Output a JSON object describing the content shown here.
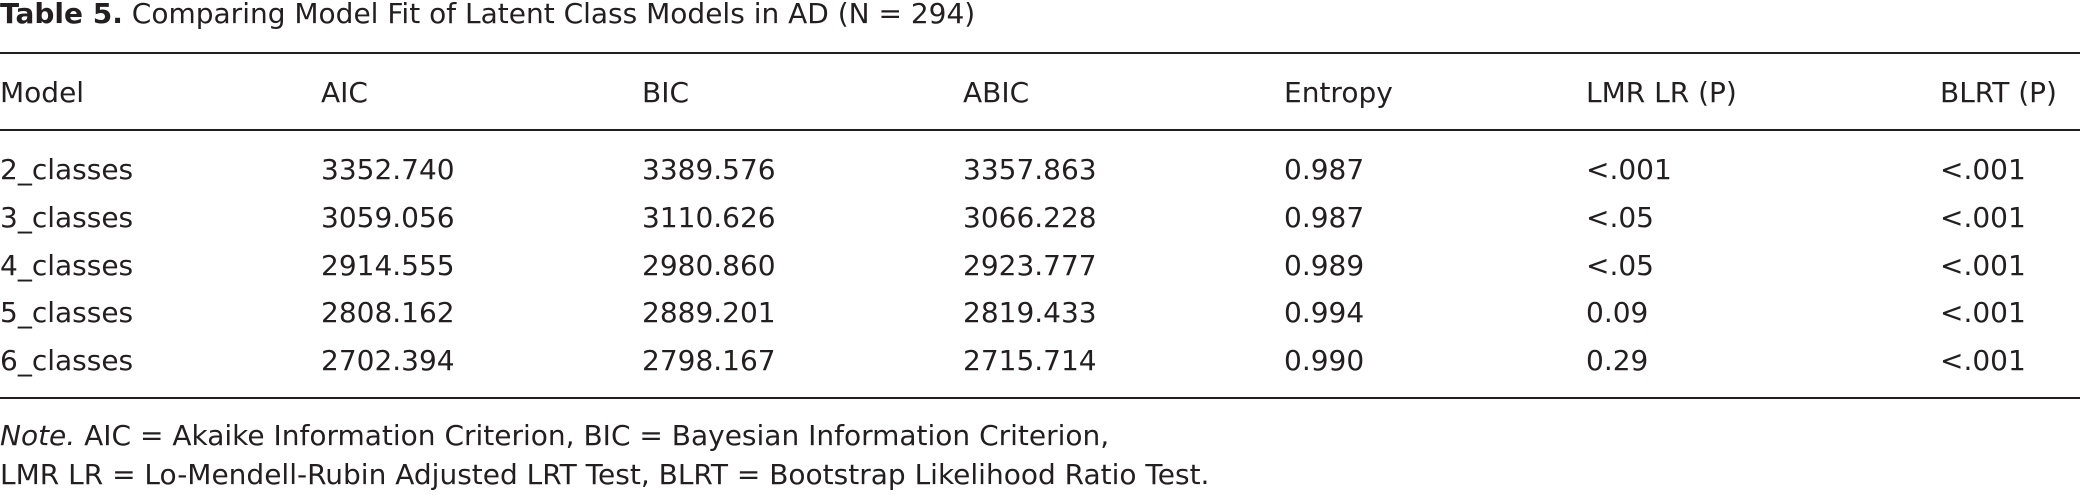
{
  "title": {
    "label": "Table 5.",
    "text": "Comparing Model Fit of Latent Class Models in AD (N = 294)"
  },
  "table": {
    "header": [
      "Model",
      "AIC",
      "BIC",
      "ABIC",
      "Entropy",
      "LMR LR (P)",
      "BLRT (P)"
    ],
    "rows": [
      [
        "2_classes",
        "3352.740",
        "3389.576",
        "3357.863",
        "0.987",
        "<.001",
        "<.001"
      ],
      [
        "3_classes",
        "3059.056",
        "3110.626",
        "3066.228",
        "0.987",
        "<.05",
        "<.001"
      ],
      [
        "4_classes",
        "2914.555",
        "2980.860",
        "2923.777",
        "0.989",
        "<.05",
        "<.001"
      ],
      [
        "5_classes",
        "2808.162",
        "2889.201",
        "2819.433",
        "0.994",
        "0.09",
        "<.001"
      ],
      [
        "6_classes",
        "2702.394",
        "2798.167",
        "2715.714",
        "0.990",
        "0.29",
        "<.001"
      ]
    ]
  },
  "note": {
    "label": "Note.",
    "lines": [
      "AIC = Akaike Information Criterion, BIC = Bayesian Information Criterion,",
      "LMR LR = Lo-Mendell-Rubin Adjusted LRT Test, BLRT = Bootstrap Likelihood Ratio Test."
    ]
  }
}
